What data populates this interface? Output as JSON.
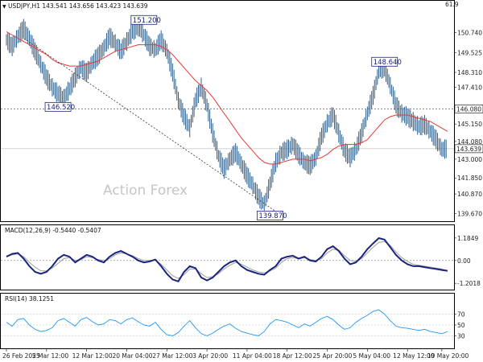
{
  "header": {
    "text": "USDJPY,H1  143.541 143.656 143.423 143.639"
  },
  "watermark": "Action Forex",
  "colors": {
    "candle": "#2f5f8a",
    "ma": "#e53935",
    "macd": "#1a237e",
    "signal": "#9e9e9e",
    "rsi": "#2196f3",
    "tag_border": "#1a237e"
  },
  "chart_data": {
    "type": "line",
    "price": {
      "ylim": [
        139.35,
        152.05
      ],
      "ticks": [
        "150.740",
        "149.525",
        "148.310",
        "147.410",
        "145.150",
        "144.080",
        "143.000",
        "141.850",
        "140.870",
        "139.670"
      ],
      "tick_values": [
        150.74,
        149.525,
        148.31,
        147.41,
        145.15,
        144.08,
        143.0,
        141.85,
        140.87,
        139.67
      ],
      "top_value": "61.9",
      "series_close": [
        150.3,
        149.9,
        150.5,
        151.0,
        150.4,
        149.6,
        148.8,
        148.0,
        147.4,
        147.0,
        146.7,
        147.3,
        148.0,
        148.6,
        148.3,
        148.9,
        149.3,
        149.8,
        150.5,
        150.1,
        149.6,
        150.2,
        150.8,
        151.1,
        150.6,
        149.9,
        149.7,
        150.3,
        149.6,
        148.3,
        146.6,
        145.6,
        144.9,
        146.6,
        147.4,
        146.3,
        144.6,
        143.2,
        142.4,
        143.0,
        143.4,
        142.7,
        142.0,
        141.4,
        140.7,
        140.2,
        141.5,
        142.8,
        143.4,
        143.6,
        143.9,
        143.3,
        142.8,
        142.6,
        143.1,
        144.4,
        145.2,
        145.7,
        144.6,
        143.5,
        143.1,
        143.6,
        144.6,
        145.8,
        146.9,
        148.4,
        148.6,
        147.5,
        146.3,
        145.8,
        145.6,
        145.3,
        145.0,
        145.1,
        144.7,
        144.2,
        143.6,
        143.64
      ],
      "ma_line": [
        150.8,
        150.6,
        150.4,
        150.2,
        150.0,
        149.8,
        149.6,
        149.4,
        149.1,
        148.9,
        148.8,
        148.7,
        148.7,
        148.7,
        148.8,
        148.9,
        149.0,
        149.2,
        149.4,
        149.6,
        149.7,
        149.8,
        149.9,
        150.0,
        150.0,
        150.0,
        150.0,
        149.9,
        149.7,
        149.4,
        149.0,
        148.6,
        148.2,
        147.8,
        147.5,
        147.2,
        146.8,
        146.3,
        145.8,
        145.3,
        144.8,
        144.3,
        143.9,
        143.5,
        143.1,
        142.8,
        142.7,
        142.7,
        142.8,
        142.9,
        143.0,
        143.0,
        143.0,
        142.9,
        143.0,
        143.1,
        143.3,
        143.6,
        143.8,
        143.9,
        143.9,
        143.9,
        144.0,
        144.2,
        144.6,
        145.0,
        145.4,
        145.6,
        145.7,
        145.7,
        145.7,
        145.6,
        145.5,
        145.4,
        145.3,
        145.1,
        144.9,
        144.7
      ],
      "hlines": [
        {
          "value": 146.08,
          "label": "146.080"
        },
        {
          "value": 143.639,
          "label": "143.639"
        }
      ],
      "annotations": [
        {
          "label": "151.200",
          "index": 24,
          "value": 151.2
        },
        {
          "label": "146.520",
          "index": 9,
          "value": 146.52
        },
        {
          "label": "139.870",
          "index": 46,
          "value": 139.87
        },
        {
          "label": "148.640",
          "index": 66,
          "value": 148.64
        }
      ],
      "trendline": {
        "from": [
          3,
          150.4
        ],
        "to": [
          47,
          139.8
        ]
      }
    },
    "macd": {
      "label": "MACD(12,26,9) -0.5440 -0.5407",
      "ylim": [
        -1.45,
        1.35
      ],
      "ticks": [
        "1.1849",
        "0.00",
        "-1.2018"
      ],
      "tick_values": [
        1.1849,
        0.0,
        -1.2018
      ],
      "macd": [
        0.2,
        0.35,
        0.4,
        0.1,
        -0.3,
        -0.6,
        -0.7,
        -0.6,
        -0.3,
        0.1,
        0.3,
        0.2,
        -0.1,
        0.1,
        0.3,
        0.2,
        0.0,
        -0.1,
        0.2,
        0.4,
        0.5,
        0.35,
        0.2,
        0.0,
        -0.1,
        -0.05,
        0.05,
        -0.3,
        -0.7,
        -1.0,
        -1.1,
        -0.6,
        -0.3,
        -0.4,
        -0.9,
        -1.05,
        -0.9,
        -0.6,
        -0.3,
        -0.1,
        0.0,
        -0.3,
        -0.5,
        -0.6,
        -0.7,
        -0.75,
        -0.5,
        -0.3,
        0.1,
        0.2,
        0.25,
        0.1,
        0.2,
        0.0,
        -0.05,
        0.2,
        0.6,
        0.75,
        0.5,
        0.1,
        -0.2,
        -0.1,
        0.2,
        0.6,
        0.9,
        1.18,
        1.1,
        0.7,
        0.3,
        0.0,
        -0.2,
        -0.3,
        -0.3,
        -0.35,
        -0.4,
        -0.45,
        -0.5,
        -0.544
      ],
      "signal": [
        0.25,
        0.3,
        0.35,
        0.2,
        -0.1,
        -0.35,
        -0.55,
        -0.55,
        -0.4,
        -0.15,
        0.1,
        0.15,
        0.0,
        0.05,
        0.2,
        0.15,
        0.05,
        0.0,
        0.1,
        0.3,
        0.4,
        0.35,
        0.25,
        0.1,
        0.0,
        0.0,
        0.0,
        -0.2,
        -0.5,
        -0.8,
        -0.95,
        -0.75,
        -0.45,
        -0.45,
        -0.7,
        -0.9,
        -0.85,
        -0.7,
        -0.45,
        -0.25,
        -0.1,
        -0.2,
        -0.35,
        -0.5,
        -0.6,
        -0.65,
        -0.55,
        -0.4,
        -0.1,
        0.1,
        0.15,
        0.1,
        0.15,
        0.05,
        0.0,
        0.1,
        0.4,
        0.6,
        0.55,
        0.25,
        0.0,
        -0.05,
        0.1,
        0.4,
        0.7,
        0.95,
        1.0,
        0.8,
        0.45,
        0.15,
        -0.05,
        -0.2,
        -0.25,
        -0.3,
        -0.35,
        -0.4,
        -0.45,
        -0.5407
      ]
    },
    "rsi": {
      "label": "RSI(14) 38.1251",
      "ylim": [
        10,
        90
      ],
      "ticks": [
        "70",
        "50",
        "30"
      ],
      "tick_values": [
        70,
        50,
        30
      ],
      "values": [
        55,
        48,
        60,
        62,
        50,
        42,
        38,
        40,
        45,
        58,
        62,
        55,
        48,
        60,
        64,
        56,
        50,
        52,
        60,
        58,
        52,
        60,
        63,
        56,
        50,
        48,
        55,
        42,
        32,
        30,
        36,
        48,
        58,
        45,
        34,
        30,
        35,
        42,
        48,
        52,
        44,
        38,
        35,
        32,
        30,
        38,
        52,
        60,
        58,
        55,
        50,
        45,
        52,
        48,
        55,
        62,
        66,
        60,
        50,
        42,
        45,
        55,
        62,
        68,
        75,
        78,
        70,
        58,
        48,
        45,
        44,
        42,
        40,
        42,
        38,
        36,
        34,
        38.13
      ]
    },
    "x_ticks": [
      {
        "label": "26 Feb 2025",
        "index": 0
      },
      {
        "label": "5 Mar 12:00",
        "index": 7
      },
      {
        "label": "12 Mar 12:00",
        "index": 14
      },
      {
        "label": "20 Mar 04:00",
        "index": 21
      },
      {
        "label": "27 Mar 12:00",
        "index": 28
      },
      {
        "label": "3 Apr 20:00",
        "index": 35
      },
      {
        "label": "11 Apr 04:00",
        "index": 42
      },
      {
        "label": "18 Apr 12:00",
        "index": 49
      },
      {
        "label": "25 Apr 20:00",
        "index": 56
      },
      {
        "label": "5 May 04:00",
        "index": 63
      },
      {
        "label": "12 May 12:00",
        "index": 70
      },
      {
        "label": "19 May 20:00",
        "index": 76
      }
    ]
  }
}
